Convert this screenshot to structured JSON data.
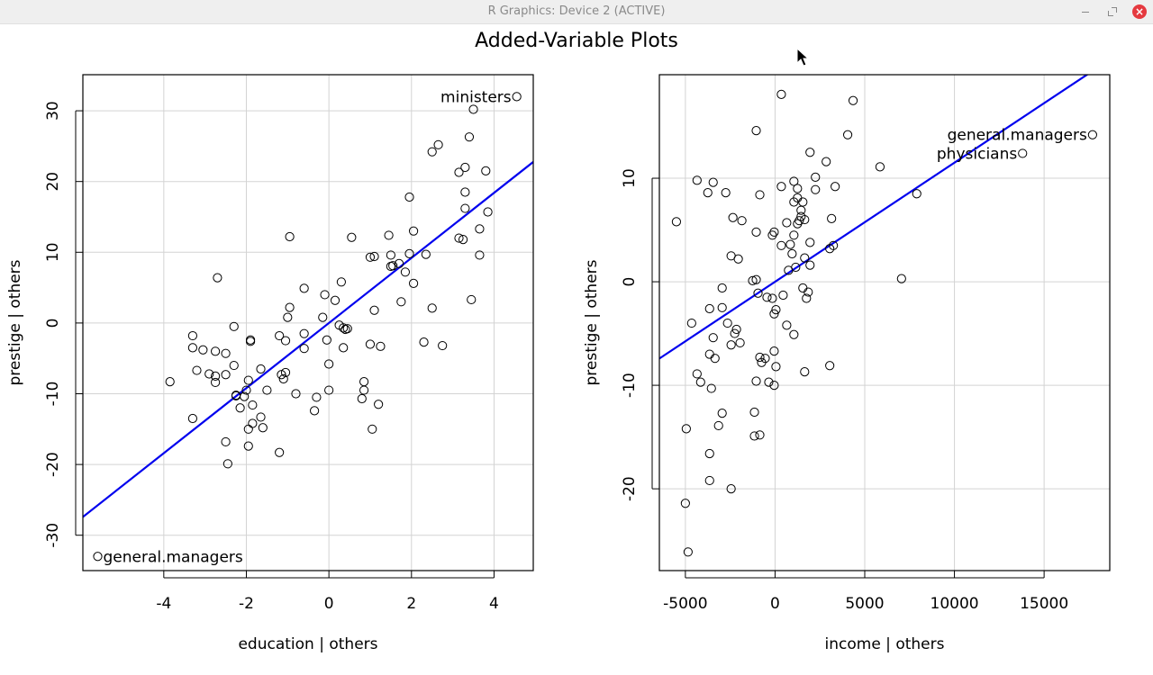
{
  "window": {
    "title": "R Graphics: Device 2 (ACTIVE)",
    "controls": [
      "minimize-icon",
      "restore-icon",
      "close-icon"
    ],
    "close_glyph": "×"
  },
  "figure": {
    "title": "Added-Variable Plots"
  },
  "colors": {
    "fit_line": "#0000ee",
    "points": "#000000",
    "grid": "#d3d3d3"
  },
  "chart_data": [
    {
      "type": "scatter",
      "title": "",
      "xlabel": "education | others",
      "ylabel": "prestige  | others",
      "xlim": [
        -5.96,
        4.95
      ],
      "ylim": [
        -35.0,
        35.1
      ],
      "xticks": [
        -4,
        -2,
        0,
        2,
        4
      ],
      "yticks": [
        -30,
        -20,
        -10,
        0,
        10,
        20,
        30
      ],
      "xtick_labels": [
        "-4",
        "-2",
        "0",
        "2",
        "4"
      ],
      "ytick_labels": [
        "-30",
        "-20",
        "-10",
        "0",
        "10",
        "20",
        "30"
      ],
      "grid": true,
      "fit_line": {
        "slope": 4.6,
        "intercept": 0
      },
      "points": [
        [
          -5.6,
          -33.0
        ],
        [
          4.55,
          32.0
        ],
        [
          3.5,
          30.2
        ],
        [
          3.4,
          26.3
        ],
        [
          2.65,
          25.2
        ],
        [
          2.5,
          24.2
        ],
        [
          3.3,
          22.0
        ],
        [
          3.15,
          21.3
        ],
        [
          3.8,
          21.5
        ],
        [
          3.3,
          18.5
        ],
        [
          1.95,
          17.8
        ],
        [
          3.3,
          16.2
        ],
        [
          3.85,
          15.7
        ],
        [
          3.65,
          13.3
        ],
        [
          2.05,
          13.0
        ],
        [
          1.45,
          12.4
        ],
        [
          3.15,
          12.0
        ],
        [
          3.25,
          11.8
        ],
        [
          -0.95,
          12.2
        ],
        [
          0.55,
          12.1
        ],
        [
          1.95,
          9.8
        ],
        [
          2.35,
          9.7
        ],
        [
          3.65,
          9.6
        ],
        [
          1.5,
          9.6
        ],
        [
          1.0,
          9.3
        ],
        [
          1.1,
          9.4
        ],
        [
          1.7,
          8.4
        ],
        [
          1.5,
          8.0
        ],
        [
          1.55,
          8.1
        ],
        [
          1.85,
          7.2
        ],
        [
          2.05,
          5.6
        ],
        [
          0.3,
          5.8
        ],
        [
          -0.6,
          4.9
        ],
        [
          0.15,
          3.2
        ],
        [
          -0.95,
          2.2
        ],
        [
          -0.1,
          4.0
        ],
        [
          1.75,
          3.0
        ],
        [
          2.5,
          2.1
        ],
        [
          3.45,
          3.3
        ],
        [
          1.1,
          1.8
        ],
        [
          -1.0,
          0.8
        ],
        [
          -0.15,
          0.8
        ],
        [
          -2.7,
          6.4
        ],
        [
          0.25,
          -0.3
        ],
        [
          0.35,
          -0.7
        ],
        [
          0.4,
          -0.9
        ],
        [
          0.45,
          -0.8
        ],
        [
          -0.6,
          -1.5
        ],
        [
          -1.2,
          -1.8
        ],
        [
          -3.3,
          -1.8
        ],
        [
          -3.05,
          -3.8
        ],
        [
          -3.3,
          -3.5
        ],
        [
          -2.75,
          -4.0
        ],
        [
          -2.5,
          -4.3
        ],
        [
          -2.3,
          -0.5
        ],
        [
          -1.9,
          -2.4
        ],
        [
          -1.9,
          -2.6
        ],
        [
          -1.05,
          -2.5
        ],
        [
          -0.05,
          -2.4
        ],
        [
          0.35,
          -3.5
        ],
        [
          -0.6,
          -3.6
        ],
        [
          1.0,
          -3.0
        ],
        [
          1.25,
          -3.3
        ],
        [
          2.3,
          -2.7
        ],
        [
          2.75,
          -3.2
        ],
        [
          -2.3,
          -6.0
        ],
        [
          -3.2,
          -6.7
        ],
        [
          -2.9,
          -7.2
        ],
        [
          -2.75,
          -7.5
        ],
        [
          -2.5,
          -7.3
        ],
        [
          -1.65,
          -6.5
        ],
        [
          -1.15,
          -7.3
        ],
        [
          -1.05,
          -7.0
        ],
        [
          -1.1,
          -7.9
        ],
        [
          -1.95,
          -8.1
        ],
        [
          -2.75,
          -8.4
        ],
        [
          -3.85,
          -8.3
        ],
        [
          0.0,
          -5.8
        ],
        [
          0.85,
          -8.3
        ],
        [
          0.85,
          -9.5
        ],
        [
          0.8,
          -10.7
        ],
        [
          0.0,
          -9.5
        ],
        [
          -0.3,
          -10.5
        ],
        [
          -0.8,
          -10.0
        ],
        [
          -2.0,
          -9.5
        ],
        [
          -2.25,
          -10.2
        ],
        [
          -2.25,
          -10.3
        ],
        [
          -2.05,
          -10.4
        ],
        [
          -1.5,
          -9.5
        ],
        [
          -2.15,
          -12.0
        ],
        [
          -1.85,
          -11.6
        ],
        [
          -1.65,
          -13.3
        ],
        [
          -0.35,
          -12.4
        ],
        [
          1.2,
          -11.5
        ],
        [
          -1.85,
          -14.2
        ],
        [
          -1.6,
          -14.8
        ],
        [
          -1.95,
          -15.0
        ],
        [
          -3.3,
          -13.5
        ],
        [
          1.05,
          -15.0
        ],
        [
          -2.5,
          -16.8
        ],
        [
          -1.95,
          -17.4
        ],
        [
          -1.2,
          -18.3
        ],
        [
          -2.45,
          -19.9
        ]
      ],
      "labels": [
        {
          "text": "ministers",
          "x": 4.55,
          "y": 32.0,
          "side": "left"
        },
        {
          "text": "general.managers",
          "x": -5.6,
          "y": -33.0,
          "side": "right"
        }
      ]
    },
    {
      "type": "scatter",
      "title": "",
      "xlabel": "income | others",
      "ylabel": "prestige  | others",
      "xlim": [
        -6450,
        18660
      ],
      "ylim": [
        -27.9,
        20.0
      ],
      "xticks": [
        -5000,
        0,
        5000,
        10000,
        15000
      ],
      "yticks": [
        -20,
        -10,
        0,
        10
      ],
      "xtick_labels": [
        "-5000",
        "0",
        "5000",
        "10000",
        "15000"
      ],
      "ytick_labels": [
        "-20",
        "-10",
        "0",
        "10"
      ],
      "grid": true,
      "fit_line": {
        "slope": 0.00115,
        "intercept": 0
      },
      "points": [
        [
          17700,
          14.2
        ],
        [
          13800,
          12.4
        ],
        [
          350,
          18.1
        ],
        [
          4350,
          17.5
        ],
        [
          -1050,
          14.6
        ],
        [
          4050,
          14.2
        ],
        [
          1950,
          12.5
        ],
        [
          2850,
          11.6
        ],
        [
          5850,
          11.1
        ],
        [
          -4350,
          9.8
        ],
        [
          -3450,
          9.6
        ],
        [
          -2750,
          8.6
        ],
        [
          -3750,
          8.6
        ],
        [
          -850,
          8.4
        ],
        [
          2250,
          10.1
        ],
        [
          3350,
          9.2
        ],
        [
          7900,
          8.5
        ],
        [
          1050,
          9.7
        ],
        [
          1250,
          9.0
        ],
        [
          350,
          9.2
        ],
        [
          2250,
          8.9
        ],
        [
          1250,
          8.1
        ],
        [
          1550,
          7.7
        ],
        [
          1050,
          7.7
        ],
        [
          1450,
          6.9
        ],
        [
          1450,
          6.3
        ],
        [
          1350,
          5.9
        ],
        [
          1250,
          5.6
        ],
        [
          1650,
          6.0
        ],
        [
          650,
          5.7
        ],
        [
          -2350,
          6.2
        ],
        [
          -1850,
          5.9
        ],
        [
          -5500,
          5.8
        ],
        [
          -1050,
          4.8
        ],
        [
          -50,
          4.8
        ],
        [
          -150,
          4.5
        ],
        [
          1050,
          4.5
        ],
        [
          3150,
          6.1
        ],
        [
          350,
          3.5
        ],
        [
          850,
          3.6
        ],
        [
          1950,
          3.8
        ],
        [
          3250,
          3.5
        ],
        [
          3050,
          3.2
        ],
        [
          950,
          2.7
        ],
        [
          1650,
          2.3
        ],
        [
          -2450,
          2.5
        ],
        [
          -2050,
          2.2
        ],
        [
          1950,
          1.6
        ],
        [
          1150,
          1.4
        ],
        [
          750,
          1.1
        ],
        [
          7050,
          0.3
        ],
        [
          -1250,
          0.1
        ],
        [
          -1050,
          0.2
        ],
        [
          -2950,
          -0.6
        ],
        [
          1550,
          -0.6
        ],
        [
          1850,
          -1.0
        ],
        [
          -950,
          -1.1
        ],
        [
          -450,
          -1.5
        ],
        [
          -150,
          -1.6
        ],
        [
          450,
          -1.3
        ],
        [
          1750,
          -1.6
        ],
        [
          -3650,
          -2.6
        ],
        [
          -2950,
          -2.5
        ],
        [
          50,
          -2.7
        ],
        [
          -50,
          -3.1
        ],
        [
          650,
          -4.2
        ],
        [
          -2650,
          -4.0
        ],
        [
          -4650,
          -4.0
        ],
        [
          -2150,
          -4.6
        ],
        [
          -2250,
          -5.0
        ],
        [
          1050,
          -5.1
        ],
        [
          -3450,
          -5.4
        ],
        [
          -1950,
          -5.9
        ],
        [
          -2450,
          -6.1
        ],
        [
          -3650,
          -7.0
        ],
        [
          -3350,
          -7.4
        ],
        [
          -850,
          -7.3
        ],
        [
          -750,
          -7.8
        ],
        [
          -550,
          -7.4
        ],
        [
          -50,
          -6.7
        ],
        [
          50,
          -8.2
        ],
        [
          1650,
          -8.7
        ],
        [
          3050,
          -8.1
        ],
        [
          -4350,
          -8.9
        ],
        [
          -4150,
          -9.7
        ],
        [
          -1050,
          -9.6
        ],
        [
          -350,
          -9.7
        ],
        [
          -50,
          -10.0
        ],
        [
          -3550,
          -10.3
        ],
        [
          -1150,
          -12.6
        ],
        [
          -2950,
          -12.7
        ],
        [
          -3150,
          -13.9
        ],
        [
          -4950,
          -14.2
        ],
        [
          -1150,
          -14.9
        ],
        [
          -850,
          -14.8
        ],
        [
          -3650,
          -16.6
        ],
        [
          -2450,
          -20.0
        ],
        [
          -3650,
          -19.2
        ],
        [
          -5000,
          -21.4
        ],
        [
          -4850,
          -26.1
        ]
      ],
      "labels": [
        {
          "text": "general.managers",
          "x": 17700,
          "y": 14.2,
          "side": "left"
        },
        {
          "text": "physicians",
          "x": 13800,
          "y": 12.4,
          "side": "left"
        }
      ]
    }
  ]
}
